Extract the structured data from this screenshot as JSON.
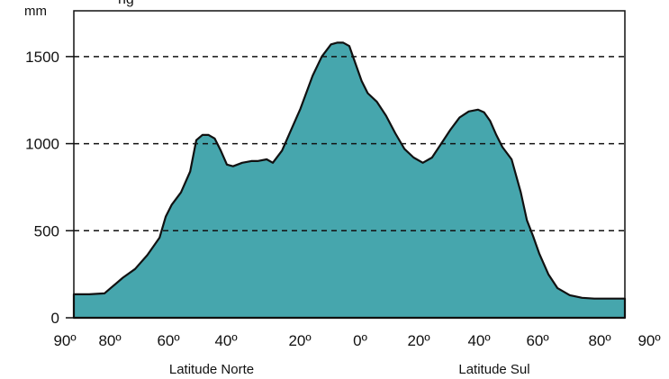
{
  "header": {
    "partial_title": "ng"
  },
  "chart_data": {
    "type": "area",
    "unit_label": "mm",
    "ylim": [
      0,
      1600
    ],
    "y_ticks": [
      0,
      500,
      1000,
      1500
    ],
    "y_tick_labels": [
      "0",
      "500",
      "1000",
      "1500"
    ],
    "grid_lines": [
      500,
      1000,
      1500
    ],
    "x_tick_labels": [
      "90º",
      "80º",
      "60º",
      "40º",
      "20º",
      "0º",
      "20º",
      "40º",
      "60º",
      "80º",
      "90º"
    ],
    "region_labels": [
      "Latitude Norte",
      "Latitude Sul"
    ],
    "fill_color": "#46a6ad",
    "series": [
      {
        "x": [
          90,
          85,
          80,
          78,
          74,
          70,
          66,
          62,
          60,
          58,
          55,
          52,
          50,
          48,
          46,
          44,
          42,
          40,
          38,
          35,
          32,
          30,
          27,
          25,
          22,
          19,
          16,
          12,
          9,
          6,
          4,
          2,
          0,
          -2,
          -4,
          -6,
          -9,
          -12,
          -15,
          -18,
          -21,
          -24,
          -27,
          -30,
          -33,
          -36,
          -39,
          -42,
          -44,
          -46,
          -48,
          -50,
          -53,
          -56,
          -58,
          -60,
          -62,
          -65,
          -68,
          -72,
          -76,
          -80,
          -85,
          -90
        ],
        "y": [
          135,
          135,
          140,
          170,
          230,
          280,
          360,
          460,
          580,
          650,
          720,
          840,
          1020,
          1050,
          1050,
          1030,
          960,
          880,
          870,
          890,
          900,
          900,
          910,
          890,
          960,
          1080,
          1200,
          1390,
          1500,
          1570,
          1580,
          1580,
          1560,
          1460,
          1360,
          1290,
          1240,
          1160,
          1060,
          970,
          920,
          890,
          920,
          1000,
          1080,
          1150,
          1185,
          1195,
          1180,
          1130,
          1050,
          980,
          910,
          720,
          560,
          470,
          370,
          250,
          170,
          130,
          115,
          110,
          110,
          110
        ]
      }
    ]
  }
}
